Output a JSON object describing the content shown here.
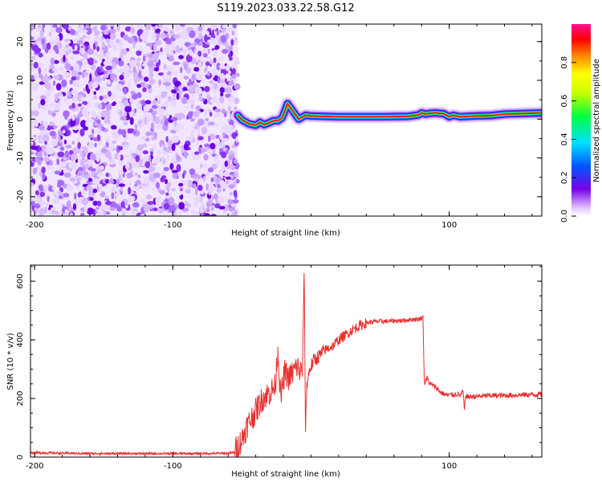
{
  "title": "S119.2023.033.22.58.G12",
  "chart_data": [
    {
      "type": "heatmap",
      "xlabel": "Height of straight line (km)",
      "ylabel": "Frequency (Hz)",
      "xlim": [
        -203,
        167
      ],
      "ylim": [
        -25,
        24.5
      ],
      "xticks": [
        -200,
        -100,
        100
      ],
      "yticks": [
        -20,
        -10,
        0,
        10,
        20
      ],
      "noise_region": [
        -203,
        -53
      ],
      "ridge": {
        "x": [
          -53,
          -50,
          -45,
          -40,
          -37,
          -34,
          -30,
          -27,
          -24,
          -21,
          -19,
          -17,
          -15,
          -13,
          -11,
          -9,
          -7,
          -4,
          0,
          20,
          50,
          70,
          78,
          80,
          83,
          86,
          90,
          96,
          100,
          103,
          108,
          118,
          130,
          140,
          167
        ],
        "freq": [
          1.0,
          -0.2,
          -1.2,
          -1.6,
          -0.8,
          -1.4,
          -0.9,
          -0.4,
          -0.4,
          0.3,
          2.0,
          4.0,
          3.0,
          2.0,
          1.0,
          0.0,
          0.4,
          1.0,
          0.8,
          0.6,
          0.6,
          0.7,
          1.1,
          1.6,
          1.3,
          1.5,
          1.6,
          1.4,
          0.6,
          1.0,
          0.6,
          0.8,
          0.9,
          1.3,
          1.6
        ]
      },
      "colorbar": {
        "label": "Normalized spectral amplitude",
        "range": [
          0,
          1
        ],
        "ticks": [
          "0.0",
          "0.2",
          "0.4",
          "0.6",
          "0.8"
        ],
        "colors": [
          "#ffffff",
          "#7a00e6",
          "#0066ff",
          "#00e0ff",
          "#00ff00",
          "#ffff00",
          "#ff8000",
          "#ff0000",
          "#ff1090"
        ]
      },
      "grid": false
    },
    {
      "type": "line",
      "xlabel": "Height of straight line (km)",
      "ylabel": "SNR (10 * v/v)",
      "xlim": [
        -203,
        167
      ],
      "ylim": [
        0,
        655
      ],
      "xticks": [
        -200,
        -100,
        100
      ],
      "yticks": [
        0,
        200,
        400,
        600
      ],
      "series": [
        {
          "color": "#e83030",
          "x": [
            -203,
            -160,
            -120,
            -80,
            -60,
            -56,
            -54,
            -50,
            -46,
            -42,
            -38,
            -35,
            -30,
            -26,
            -24,
            -22,
            -19,
            -16,
            -13,
            -10,
            -8,
            -6,
            -5,
            -4,
            -3,
            -1,
            2,
            6,
            10,
            16,
            20,
            26,
            30,
            36,
            40,
            45,
            50,
            55,
            60,
            65,
            70,
            75,
            78,
            81,
            82,
            83,
            84,
            86,
            90,
            94,
            98,
            102,
            106,
            108,
            110,
            111,
            112,
            114,
            120,
            130,
            140,
            150,
            160,
            167
          ],
          "y": [
            15,
            12,
            12,
            12,
            13,
            15,
            30,
            60,
            110,
            140,
            175,
            200,
            220,
            240,
            370,
            200,
            290,
            270,
            290,
            310,
            290,
            300,
            650,
            100,
            250,
            300,
            330,
            345,
            365,
            380,
            400,
            420,
            435,
            450,
            458,
            462,
            463,
            463,
            465,
            465,
            468,
            470,
            470,
            478,
            250,
            260,
            270,
            250,
            240,
            220,
            212,
            212,
            215,
            210,
            225,
            160,
            210,
            205,
            207,
            210,
            210,
            212,
            213,
            215
          ]
        }
      ],
      "grid": false
    }
  ]
}
